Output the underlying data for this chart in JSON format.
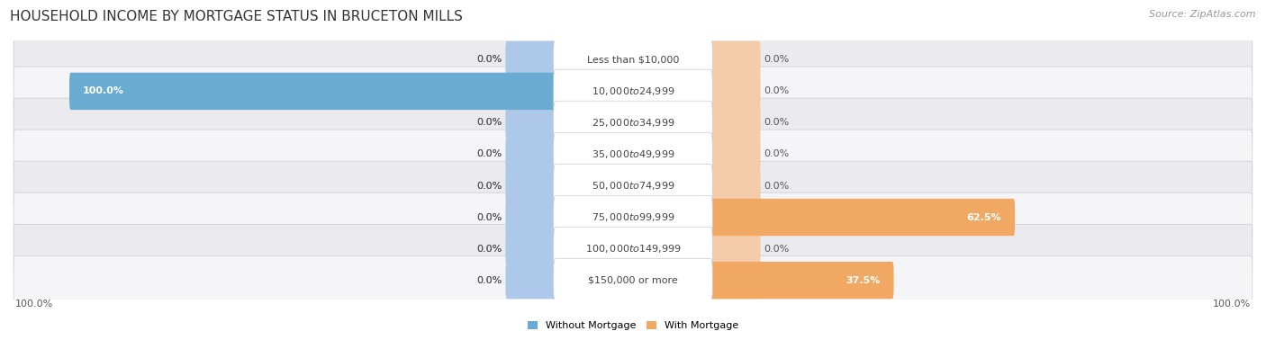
{
  "title": "HOUSEHOLD INCOME BY MORTGAGE STATUS IN BRUCETON MILLS",
  "source": "Source: ZipAtlas.com",
  "categories": [
    "Less than $10,000",
    "$10,000 to $24,999",
    "$25,000 to $34,999",
    "$35,000 to $49,999",
    "$50,000 to $74,999",
    "$75,000 to $99,999",
    "$100,000 to $149,999",
    "$150,000 or more"
  ],
  "without_mortgage": [
    0.0,
    100.0,
    0.0,
    0.0,
    0.0,
    0.0,
    0.0,
    0.0
  ],
  "with_mortgage": [
    0.0,
    0.0,
    0.0,
    0.0,
    0.0,
    62.5,
    0.0,
    37.5
  ],
  "color_without": "#6aabd2",
  "color_with": "#f0a862",
  "color_without_light": "#adc8e8",
  "color_with_light": "#f5ccaa",
  "bg_row_alt": "#eaeaef",
  "bg_row_norm": "#f5f5f8",
  "title_fontsize": 11,
  "source_fontsize": 8,
  "cat_fontsize": 8,
  "pct_fontsize": 8,
  "legend_fontsize": 8,
  "axis_label_left": "100.0%",
  "axis_label_right": "100.0%",
  "max_val": 100.0,
  "stub_size": 10,
  "label_half": 16
}
